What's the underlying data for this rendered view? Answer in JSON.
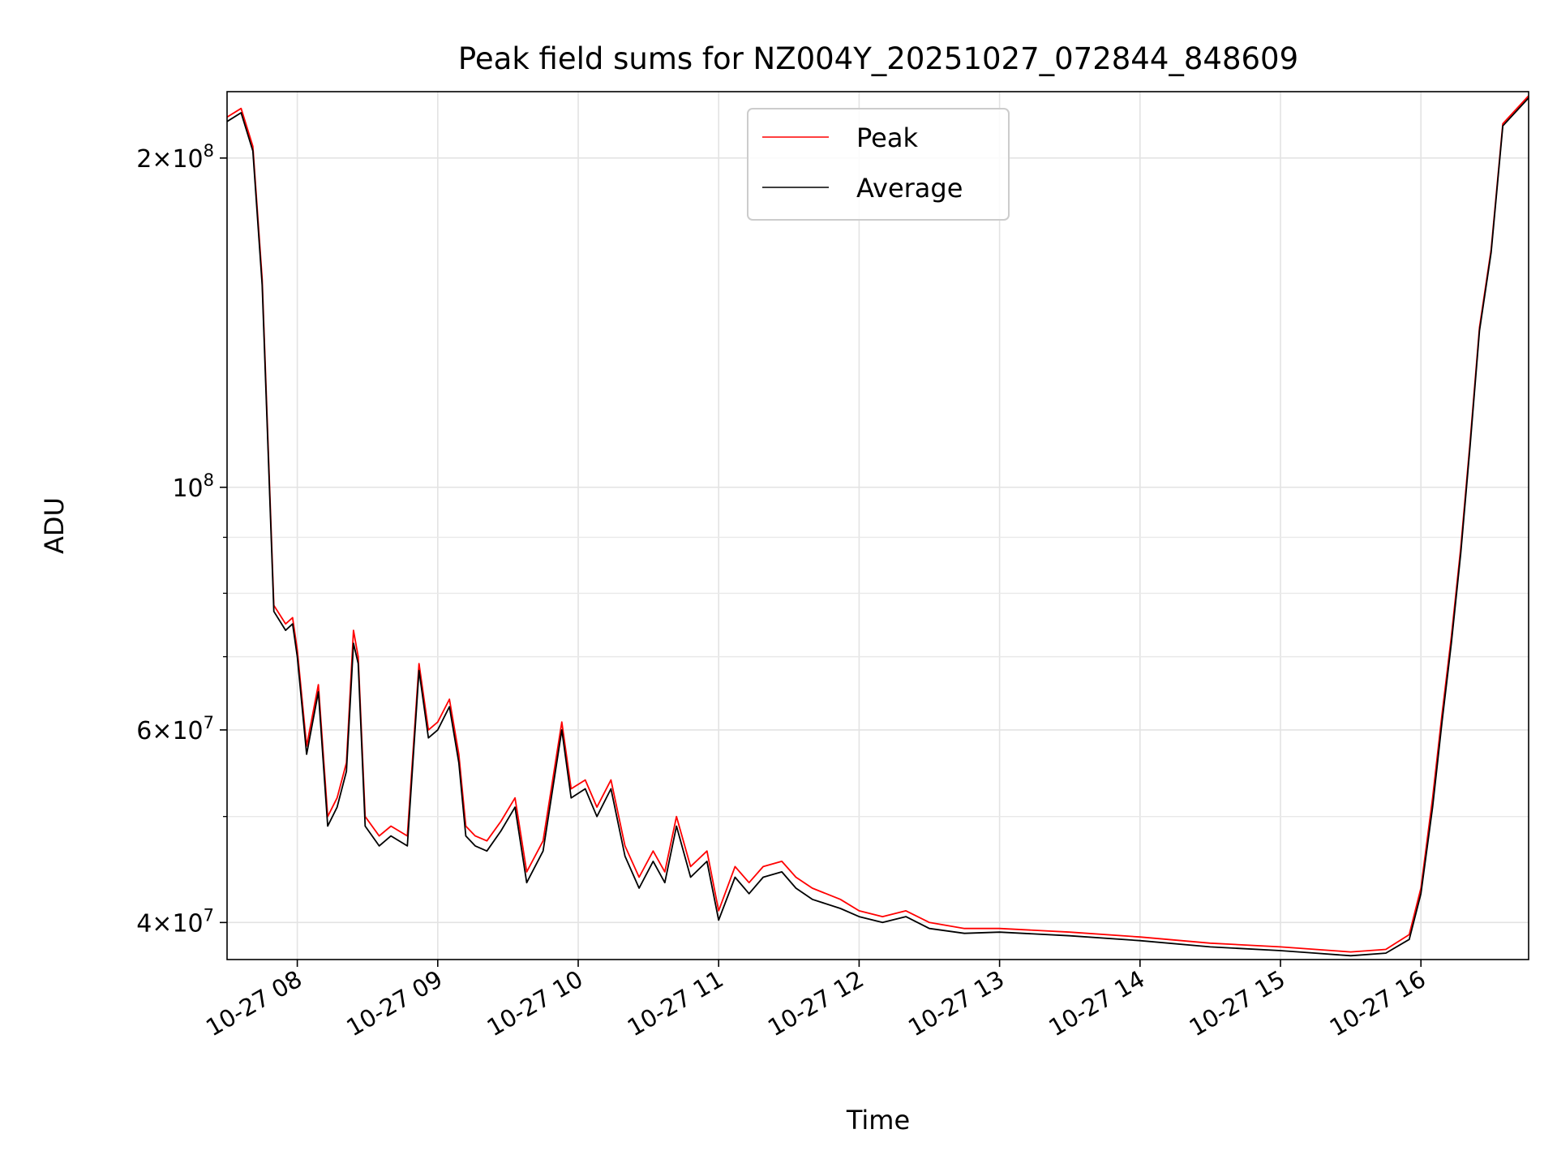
{
  "chart_data": {
    "type": "line",
    "title": "Peak field sums for NZ004Y_20251027_072844_848609",
    "xlabel": "Time",
    "ylabel": "ADU",
    "yscale": "log",
    "ylim": [
      37000000,
      230000000
    ],
    "xlim": [
      "2025-10-27 07:30",
      "2025-10-27 16:46"
    ],
    "grid": true,
    "legend_position": "top-center",
    "x_ticks": [
      "10-27 08",
      "10-27 09",
      "10-27 10",
      "10-27 11",
      "10-27 12",
      "10-27 13",
      "10-27 14",
      "10-27 15",
      "10-27 16"
    ],
    "x_tick_times": [
      "2025-10-27 08:00",
      "2025-10-27 09:00",
      "2025-10-27 10:00",
      "2025-10-27 11:00",
      "2025-10-27 12:00",
      "2025-10-27 13:00",
      "2025-10-27 14:00",
      "2025-10-27 15:00",
      "2025-10-27 16:00"
    ],
    "y_ticks": [
      {
        "value": 40000000,
        "mant": "4",
        "exp": "7"
      },
      {
        "value": 60000000,
        "mant": "6",
        "exp": "7"
      },
      {
        "value": 100000000,
        "mant": "",
        "exp": "8"
      },
      {
        "value": 200000000,
        "mant": "2",
        "exp": "8"
      }
    ],
    "y_minor_ticks": [
      50000000,
      70000000,
      80000000,
      90000000
    ],
    "series": [
      {
        "name": "Peak",
        "color": "#ff0000",
        "x": [
          "07:30",
          "07:36",
          "07:41",
          "07:45",
          "07:50",
          "07:55",
          "07:58",
          "08:00",
          "08:04",
          "08:09",
          "08:13",
          "08:17",
          "08:21",
          "08:24",
          "08:26",
          "08:29",
          "08:35",
          "08:40",
          "08:47",
          "08:52",
          "08:56",
          "09:00",
          "09:05",
          "09:09",
          "09:12",
          "09:16",
          "09:21",
          "09:27",
          "09:33",
          "09:38",
          "09:45",
          "09:53",
          "09:57",
          "10:03",
          "10:08",
          "10:14",
          "10:20",
          "10:26",
          "10:32",
          "10:37",
          "10:42",
          "10:48",
          "10:55",
          "11:00",
          "11:07",
          "11:13",
          "11:19",
          "11:27",
          "11:33",
          "11:40",
          "11:52",
          "12:00",
          "12:10",
          "12:20",
          "12:30",
          "12:45",
          "13:00",
          "13:30",
          "14:00",
          "14:30",
          "15:00",
          "15:15",
          "15:30",
          "15:45",
          "15:55",
          "16:00",
          "16:05",
          "16:09",
          "16:13",
          "16:17",
          "16:21",
          "16:25",
          "16:30",
          "16:35",
          "16:46"
        ],
        "values": [
          218000000,
          222000000,
          205000000,
          155000000,
          78000000,
          75000000,
          76000000,
          71000000,
          58000000,
          66000000,
          50000000,
          52000000,
          56000000,
          74000000,
          70000000,
          50000000,
          48000000,
          49000000,
          48000000,
          69000000,
          60000000,
          61000000,
          64000000,
          57000000,
          49000000,
          48000000,
          47500000,
          49500000,
          52000000,
          44500000,
          47500000,
          61000000,
          53000000,
          54000000,
          51000000,
          54000000,
          47000000,
          44000000,
          46500000,
          44500000,
          50000000,
          45000000,
          46500000,
          41000000,
          45000000,
          43500000,
          45000000,
          45500000,
          44000000,
          43000000,
          42000000,
          41000000,
          40500000,
          41000000,
          40000000,
          39500000,
          39500000,
          39200000,
          38800000,
          38300000,
          38000000,
          37800000,
          37600000,
          37800000,
          39000000,
          43000000,
          52000000,
          62000000,
          73000000,
          88000000,
          110000000,
          140000000,
          165000000,
          215000000,
          228000000
        ]
      },
      {
        "name": "Average",
        "color": "#000000",
        "x": [
          "07:30",
          "07:36",
          "07:41",
          "07:45",
          "07:50",
          "07:55",
          "07:58",
          "08:00",
          "08:04",
          "08:09",
          "08:13",
          "08:17",
          "08:21",
          "08:24",
          "08:26",
          "08:29",
          "08:35",
          "08:40",
          "08:47",
          "08:52",
          "08:56",
          "09:00",
          "09:05",
          "09:09",
          "09:12",
          "09:16",
          "09:21",
          "09:27",
          "09:33",
          "09:38",
          "09:45",
          "09:53",
          "09:57",
          "10:03",
          "10:08",
          "10:14",
          "10:20",
          "10:26",
          "10:32",
          "10:37",
          "10:42",
          "10:48",
          "10:55",
          "11:00",
          "11:07",
          "11:13",
          "11:19",
          "11:27",
          "11:33",
          "11:40",
          "11:52",
          "12:00",
          "12:10",
          "12:20",
          "12:30",
          "12:45",
          "13:00",
          "13:30",
          "14:00",
          "14:30",
          "15:00",
          "15:15",
          "15:30",
          "15:45",
          "15:55",
          "16:00",
          "16:05",
          "16:09",
          "16:13",
          "16:17",
          "16:21",
          "16:25",
          "16:30",
          "16:35",
          "16:46"
        ],
        "values": [
          216000000,
          220000000,
          203000000,
          153000000,
          77000000,
          74000000,
          75000000,
          70000000,
          57000000,
          65000000,
          49000000,
          51000000,
          55000000,
          72000000,
          69000000,
          49000000,
          47000000,
          48000000,
          47000000,
          68000000,
          59000000,
          60000000,
          63000000,
          56000000,
          48000000,
          47000000,
          46500000,
          48500000,
          51000000,
          43500000,
          46500000,
          60000000,
          52000000,
          53000000,
          50000000,
          53000000,
          46000000,
          43000000,
          45500000,
          43500000,
          49000000,
          44000000,
          45500000,
          40200000,
          44000000,
          42500000,
          44000000,
          44500000,
          43000000,
          42000000,
          41200000,
          40500000,
          40000000,
          40500000,
          39500000,
          39100000,
          39200000,
          38900000,
          38500000,
          38000000,
          37700000,
          37500000,
          37300000,
          37500000,
          38600000,
          42500000,
          51000000,
          61000000,
          72000000,
          87000000,
          109000000,
          139000000,
          164000000,
          214000000,
          227000000
        ]
      }
    ]
  }
}
